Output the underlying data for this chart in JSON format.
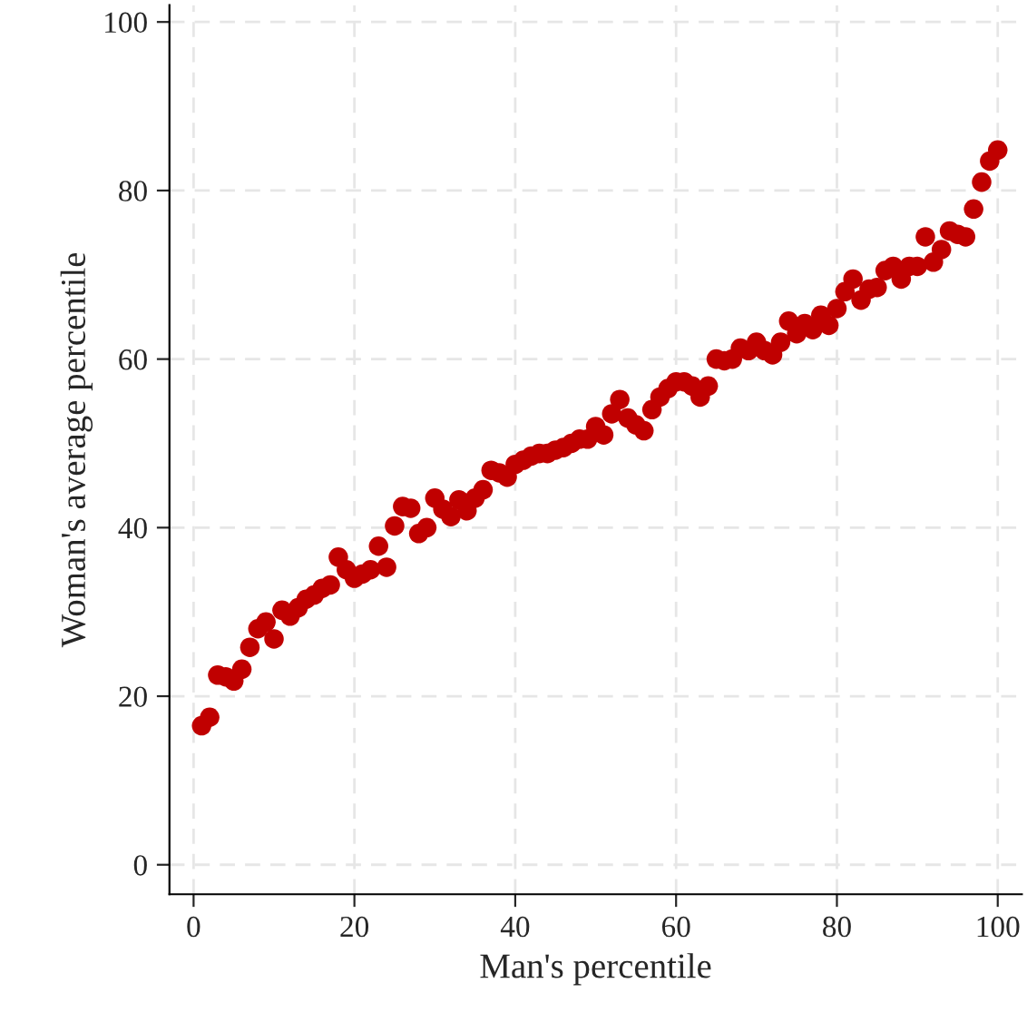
{
  "chart_data": {
    "type": "scatter",
    "xlabel": "Man's percentile",
    "ylabel": "Woman's average percentile",
    "x": [
      1,
      2,
      3,
      4,
      5,
      6,
      7,
      8,
      9,
      10,
      11,
      12,
      13,
      14,
      15,
      16,
      17,
      18,
      19,
      20,
      21,
      22,
      23,
      24,
      25,
      26,
      27,
      28,
      29,
      30,
      31,
      32,
      33,
      34,
      35,
      36,
      37,
      38,
      39,
      40,
      41,
      42,
      43,
      44,
      45,
      46,
      47,
      48,
      49,
      50,
      51,
      52,
      53,
      54,
      55,
      56,
      57,
      58,
      59,
      60,
      61,
      62,
      63,
      64,
      65,
      66,
      67,
      68,
      69,
      70,
      71,
      72,
      73,
      74,
      75,
      76,
      77,
      78,
      79,
      80,
      81,
      82,
      83,
      84,
      85,
      86,
      87,
      88,
      89,
      90,
      91,
      92,
      93,
      94,
      95,
      96,
      97,
      98,
      99,
      100
    ],
    "series": [
      {
        "color": "#c00000",
        "values": [
          16.5,
          17.5,
          22.5,
          22.3,
          21.8,
          23.2,
          25.8,
          28,
          28.8,
          26.8,
          30.2,
          29.5,
          30.5,
          31.5,
          32,
          32.8,
          33.2,
          36.5,
          35,
          34,
          34.5,
          35,
          37.8,
          35.3,
          40.2,
          42.5,
          42.3,
          39.3,
          40,
          43.5,
          42.2,
          41.3,
          43.3,
          42,
          43.5,
          44.5,
          46.8,
          46.5,
          46,
          47.5,
          48,
          48.5,
          48.8,
          48.8,
          49.2,
          49.5,
          50,
          50.5,
          50.5,
          52,
          51,
          53.5,
          55.2,
          53,
          52.2,
          51.5,
          54,
          55.5,
          56.5,
          57.3,
          57.3,
          56.8,
          55.5,
          56.8,
          60,
          59.8,
          60,
          61.3,
          61,
          62,
          61,
          60.5,
          62,
          64.5,
          63,
          64.2,
          63.5,
          65.2,
          64,
          66,
          68,
          69.5,
          67,
          68.3,
          68.5,
          70.5,
          71,
          69.5,
          71,
          71,
          74.5,
          71.5,
          73,
          75.2,
          74.8,
          74.5,
          77.8,
          81,
          83.5,
          84.8
        ]
      }
    ],
    "xlim": [
      -3,
      103
    ],
    "ylim": [
      -3.5,
      102
    ],
    "xticks": [
      0,
      20,
      40,
      60,
      80,
      100
    ],
    "yticks": [
      0,
      20,
      40,
      60,
      80,
      100
    ],
    "grid": true,
    "marker": "circle"
  }
}
